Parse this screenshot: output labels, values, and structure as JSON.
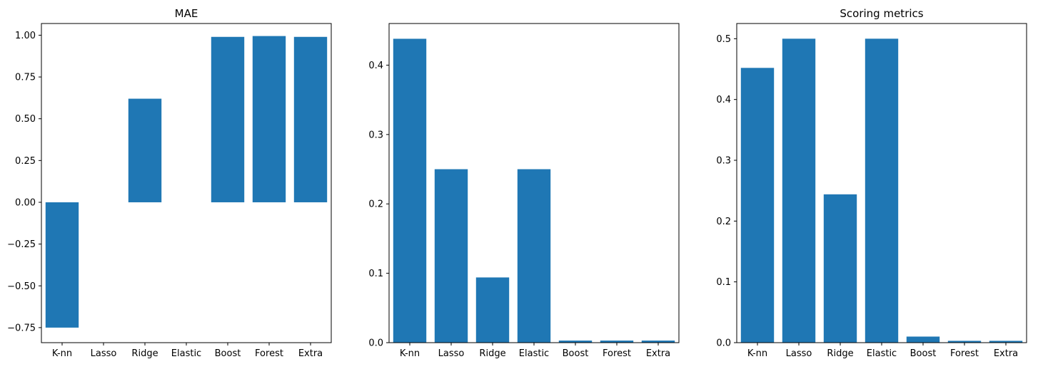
{
  "figure": {
    "bar_color": "#1f77b4",
    "background": "#ffffff"
  },
  "chart_data": [
    {
      "type": "bar",
      "title": "MAE",
      "xlabel": "",
      "ylabel": "",
      "categories": [
        "K-nn",
        "Lasso",
        "Ridge",
        "Elastic",
        "Boost",
        "Forest",
        "Extra"
      ],
      "values": [
        -0.75,
        0,
        0.62,
        0,
        0.99,
        0.995,
        0.99
      ],
      "ylim": [
        -0.84,
        1.07
      ],
      "yticks": [
        -0.75,
        -0.5,
        -0.25,
        0.0,
        0.25,
        0.5,
        0.75,
        1.0
      ],
      "ytick_labels": [
        "−0.75",
        "−0.50",
        "−0.25",
        "0.00",
        "0.25",
        "0.50",
        "0.75",
        "1.00"
      ],
      "grid": false,
      "legend": "none"
    },
    {
      "type": "bar",
      "title": "",
      "xlabel": "",
      "ylabel": "",
      "categories": [
        "K-nn",
        "Lasso",
        "Ridge",
        "Elastic",
        "Boost",
        "Forest",
        "Extra"
      ],
      "values": [
        0.438,
        0.25,
        0.094,
        0.25,
        0.003,
        0.003,
        0.003
      ],
      "ylim": [
        0,
        0.46
      ],
      "yticks": [
        0.0,
        0.1,
        0.2,
        0.3,
        0.4
      ],
      "ytick_labels": [
        "0.0",
        "0.1",
        "0.2",
        "0.3",
        "0.4"
      ],
      "grid": false,
      "legend": "none"
    },
    {
      "type": "bar",
      "title": "Scoring metrics",
      "xlabel": "",
      "ylabel": "",
      "categories": [
        "K-nn",
        "Lasso",
        "Ridge",
        "Elastic",
        "Boost",
        "Forest",
        "Extra"
      ],
      "values": [
        0.452,
        0.5,
        0.244,
        0.5,
        0.01,
        0.003,
        0.003
      ],
      "ylim": [
        0,
        0.525
      ],
      "yticks": [
        0.0,
        0.1,
        0.2,
        0.3,
        0.4,
        0.5
      ],
      "ytick_labels": [
        "0.0",
        "0.1",
        "0.2",
        "0.3",
        "0.4",
        "0.5"
      ],
      "grid": false,
      "legend": "none"
    }
  ]
}
